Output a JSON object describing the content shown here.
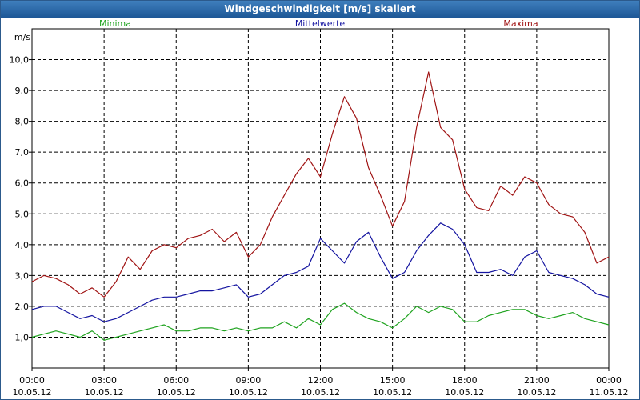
{
  "window": {
    "title": "Windgeschwindigkeit [m/s] skaliert"
  },
  "colors": {
    "minima": "#1fa31f",
    "mittel": "#1414a0",
    "maxima": "#a01414"
  },
  "chart_data": {
    "type": "line",
    "title": "Windgeschwindigkeit [m/s] skaliert",
    "ylabel": "m/s",
    "ylim": [
      0.0,
      11.0
    ],
    "xlim": [
      0,
      24
    ],
    "y_ticks": [
      1.0,
      2.0,
      3.0,
      4.0,
      5.0,
      6.0,
      7.0,
      8.0,
      9.0,
      10.0
    ],
    "y_tick_labels": [
      "1,0",
      "2,0",
      "3,0",
      "4,0",
      "5,0",
      "6,0",
      "7,0",
      "8,0",
      "9,0",
      "10,0"
    ],
    "x_ticks": [
      {
        "time": "00:00",
        "date": "10.05.12"
      },
      {
        "time": "03:00",
        "date": "10.05.12"
      },
      {
        "time": "06:00",
        "date": "10.05.12"
      },
      {
        "time": "09:00",
        "date": "10.05.12"
      },
      {
        "time": "12:00",
        "date": "10.05.12"
      },
      {
        "time": "15:00",
        "date": "10.05.12"
      },
      {
        "time": "18:00",
        "date": "10.05.12"
      },
      {
        "time": "21:00",
        "date": "10.05.12"
      },
      {
        "time": "00:00",
        "date": "11.05.12"
      }
    ],
    "legend": [
      "Minima",
      "Mittelwerte",
      "Maxima"
    ],
    "series": [
      {
        "name": "Minima",
        "x": [
          0,
          0.5,
          1,
          1.5,
          2,
          2.5,
          3,
          3.5,
          4,
          4.5,
          5,
          5.5,
          6,
          6.5,
          7,
          7.5,
          8,
          8.5,
          9,
          9.5,
          10,
          10.5,
          11,
          11.5,
          12,
          12.5,
          13,
          13.5,
          14,
          14.5,
          15,
          15.5,
          16,
          16.5,
          17,
          17.5,
          18,
          18.5,
          19,
          19.5,
          20,
          20.5,
          21,
          21.5,
          22,
          22.5,
          23,
          23.5,
          24
        ],
        "values": [
          1.0,
          1.1,
          1.2,
          1.1,
          1.0,
          1.2,
          0.9,
          1.0,
          1.1,
          1.2,
          1.3,
          1.4,
          1.2,
          1.2,
          1.3,
          1.3,
          1.2,
          1.3,
          1.2,
          1.3,
          1.3,
          1.5,
          1.3,
          1.6,
          1.4,
          1.9,
          2.1,
          1.8,
          1.6,
          1.5,
          1.3,
          1.6,
          2.0,
          1.8,
          2.0,
          1.9,
          1.5,
          1.5,
          1.7,
          1.8,
          1.9,
          1.9,
          1.7,
          1.6,
          1.7,
          1.8,
          1.6,
          1.5,
          1.4
        ]
      },
      {
        "name": "Mittelwerte",
        "x": [
          0,
          0.5,
          1,
          1.5,
          2,
          2.5,
          3,
          3.5,
          4,
          4.5,
          5,
          5.5,
          6,
          6.5,
          7,
          7.5,
          8,
          8.5,
          9,
          9.5,
          10,
          10.5,
          11,
          11.5,
          12,
          12.5,
          13,
          13.5,
          14,
          14.5,
          15,
          15.5,
          16,
          16.5,
          17,
          17.5,
          18,
          18.5,
          19,
          19.5,
          20,
          20.5,
          21,
          21.5,
          22,
          22.5,
          23,
          23.5,
          24
        ],
        "values": [
          1.9,
          2.0,
          2.0,
          1.8,
          1.6,
          1.7,
          1.5,
          1.6,
          1.8,
          2.0,
          2.2,
          2.3,
          2.3,
          2.4,
          2.5,
          2.5,
          2.6,
          2.7,
          2.3,
          2.4,
          2.7,
          3.0,
          3.1,
          3.3,
          4.2,
          3.8,
          3.4,
          4.1,
          4.4,
          3.6,
          2.9,
          3.1,
          3.8,
          4.3,
          4.7,
          4.5,
          4.0,
          3.1,
          3.1,
          3.2,
          3.0,
          3.6,
          3.8,
          3.1,
          3.0,
          2.9,
          2.7,
          2.4,
          2.3
        ]
      },
      {
        "name": "Maxima",
        "x": [
          0,
          0.5,
          1,
          1.5,
          2,
          2.5,
          3,
          3.5,
          4,
          4.5,
          5,
          5.5,
          6,
          6.5,
          7,
          7.5,
          8,
          8.5,
          9,
          9.5,
          10,
          10.5,
          11,
          11.5,
          12,
          12.5,
          13,
          13.5,
          14,
          14.5,
          15,
          15.5,
          16,
          16.5,
          17,
          17.5,
          18,
          18.5,
          19,
          19.5,
          20,
          20.5,
          21,
          21.5,
          22,
          22.5,
          23,
          23.5,
          24
        ],
        "values": [
          2.8,
          3.0,
          2.9,
          2.7,
          2.4,
          2.6,
          2.3,
          2.8,
          3.6,
          3.2,
          3.8,
          4.0,
          3.9,
          4.2,
          4.3,
          4.5,
          4.1,
          4.4,
          3.6,
          4.0,
          4.9,
          5.6,
          6.3,
          6.8,
          6.2,
          7.6,
          8.8,
          8.1,
          6.5,
          5.6,
          4.6,
          5.4,
          7.8,
          9.6,
          7.8,
          7.4,
          5.8,
          5.2,
          5.1,
          5.9,
          5.6,
          6.2,
          6.0,
          5.3,
          5.0,
          4.9,
          4.4,
          3.4,
          3.6
        ]
      }
    ]
  }
}
